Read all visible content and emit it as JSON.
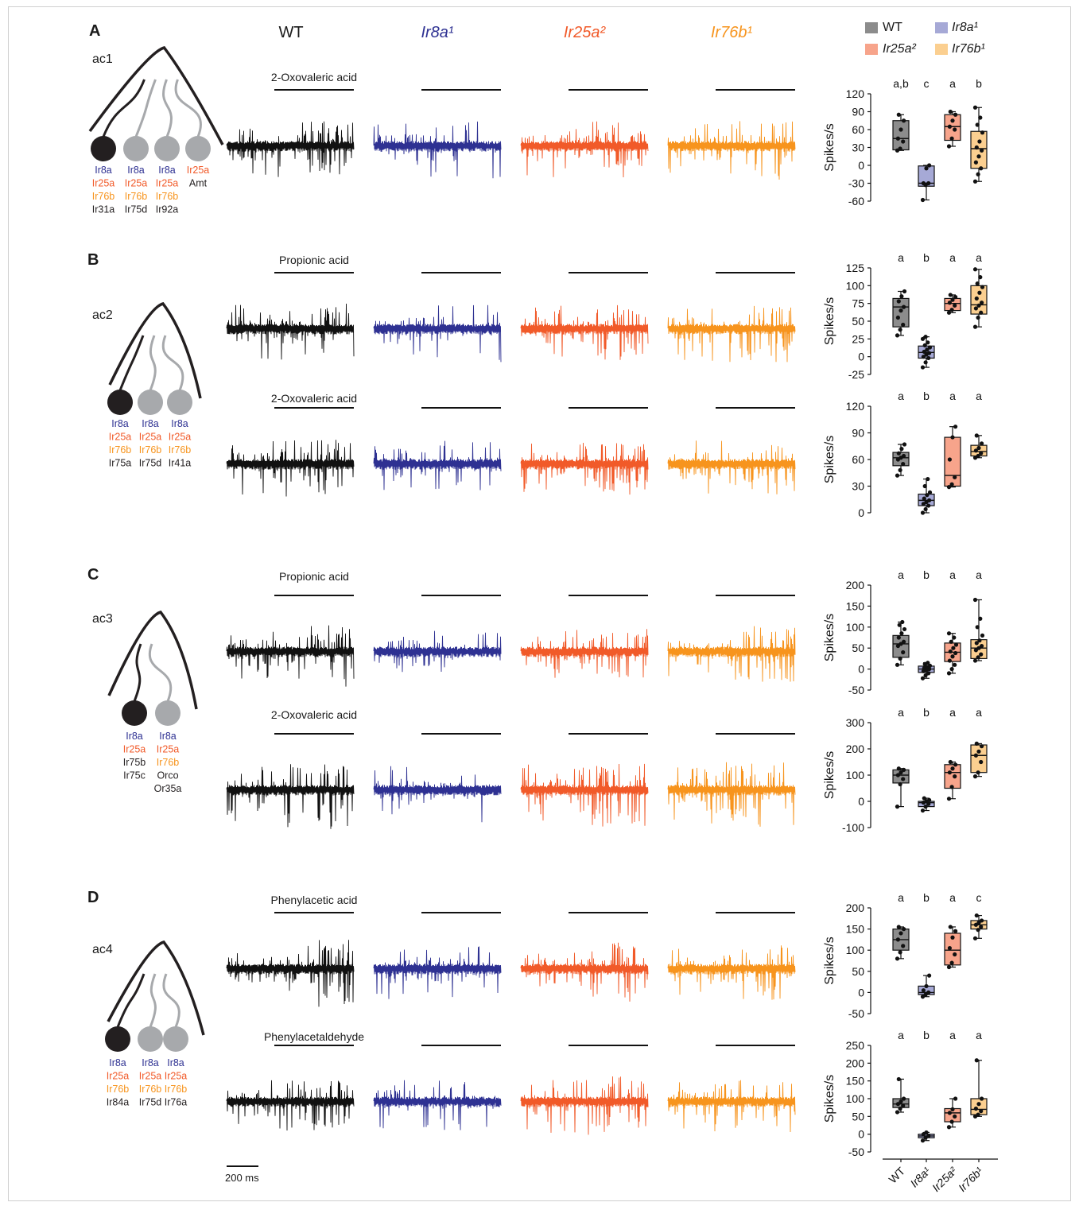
{
  "colors": {
    "wt": "#111111",
    "ir8a": "#2e3192",
    "ir25a": "#f15a29",
    "ir76b": "#f7941d",
    "wt_fill": "#8c8c8c",
    "ir8a_fill": "#a6a9d6",
    "ir25a_fill": "#f7a48b",
    "ir76b_fill": "#fbcf90",
    "grey_neuron": "#a7a9ac"
  },
  "genotypes": [
    "WT",
    "Ir8a¹",
    "Ir25a²",
    "Ir76b¹"
  ],
  "legend": {
    "wt": "WT",
    "ir8a": "Ir8a¹",
    "ir25a": "Ir25a²",
    "ir76b": "Ir76b¹"
  },
  "x_tick_labels": [
    "WT",
    "Ir8a¹",
    "Ir25a²",
    "Ir76b¹"
  ],
  "scale_bar": "200 ms",
  "panels": [
    {
      "letter": "A",
      "sensillum": "ac1",
      "neurons": [
        {
          "filled": true,
          "receptors": [
            [
              "Ir8a",
              "ir8a"
            ],
            [
              "Ir25a",
              "ir25a"
            ],
            [
              "Ir76b",
              "ir76b"
            ],
            [
              "Ir31a",
              "wt"
            ]
          ]
        },
        {
          "filled": false,
          "receptors": [
            [
              "Ir8a",
              "ir8a"
            ],
            [
              "Ir25a",
              "ir25a"
            ],
            [
              "Ir76b",
              "ir76b"
            ],
            [
              "Ir75d",
              "wt"
            ]
          ]
        },
        {
          "filled": false,
          "receptors": [
            [
              "Ir8a",
              "ir8a"
            ],
            [
              "Ir25a",
              "ir25a"
            ],
            [
              "Ir76b",
              "ir76b"
            ],
            [
              "Ir92a",
              "wt"
            ]
          ]
        },
        {
          "filled": false,
          "receptors": [
            [
              "Ir25a",
              "ir25a"
            ],
            [
              "Amt",
              "wt"
            ]
          ]
        }
      ]
    },
    {
      "letter": "B",
      "sensillum": "ac2",
      "neurons": [
        {
          "filled": true,
          "receptors": [
            [
              "Ir8a",
              "ir8a"
            ],
            [
              "Ir25a",
              "ir25a"
            ],
            [
              "Ir76b",
              "ir76b"
            ],
            [
              "Ir75a",
              "wt"
            ]
          ]
        },
        {
          "filled": false,
          "receptors": [
            [
              "Ir8a",
              "ir8a"
            ],
            [
              "Ir25a",
              "ir25a"
            ],
            [
              "Ir76b",
              "ir76b"
            ],
            [
              "Ir75d",
              "wt"
            ]
          ]
        },
        {
          "filled": false,
          "receptors": [
            [
              "Ir8a",
              "ir8a"
            ],
            [
              "Ir25a",
              "ir25a"
            ],
            [
              "Ir76b",
              "ir76b"
            ],
            [
              "Ir41a",
              "wt"
            ]
          ]
        }
      ]
    },
    {
      "letter": "C",
      "sensillum": "ac3",
      "neurons": [
        {
          "filled": true,
          "receptors": [
            [
              "Ir8a",
              "ir8a"
            ],
            [
              "Ir25a",
              "ir25a"
            ],
            [
              "Ir75b",
              "wt"
            ],
            [
              "Ir75c",
              "wt"
            ]
          ]
        },
        {
          "filled": false,
          "receptors": [
            [
              "Ir8a",
              "ir8a"
            ],
            [
              "Ir25a",
              "ir25a"
            ],
            [
              "Ir76b",
              "ir76b"
            ],
            [
              "Orco",
              "wt"
            ],
            [
              "Or35a",
              "wt"
            ]
          ]
        }
      ]
    },
    {
      "letter": "D",
      "sensillum": "ac4",
      "neurons": [
        {
          "filled": true,
          "receptors": [
            [
              "Ir8a",
              "ir8a"
            ],
            [
              "Ir25a",
              "ir25a"
            ],
            [
              "Ir76b",
              "ir76b"
            ],
            [
              "Ir84a",
              "wt"
            ]
          ]
        },
        {
          "filled": false,
          "receptors": [
            [
              "Ir8a",
              "ir8a"
            ],
            [
              "Ir25a",
              "ir25a"
            ],
            [
              "Ir76b",
              "ir76b"
            ],
            [
              "Ir75d",
              "wt"
            ]
          ]
        },
        {
          "filled": false,
          "receptors": [
            [
              "Ir8a",
              "ir8a"
            ],
            [
              "Ir25a",
              "ir25a"
            ],
            [
              "Ir76b",
              "ir76b"
            ],
            [
              "Ir76a",
              "wt"
            ]
          ]
        }
      ]
    }
  ],
  "stimuli": [
    "2-Oxovaleric acid",
    "Propionic acid",
    "2-Oxovaleric acid",
    "Propionic acid",
    "2-Oxovaleric acid",
    "Phenylacetic acid",
    "Phenylacetaldehyde"
  ],
  "chart_data": [
    {
      "type": "box",
      "panel": "A",
      "stimulus": "2-Oxovaleric acid",
      "ylabel": "Spikes/s",
      "ylim": [
        -60,
        120
      ],
      "yticks": [
        120,
        90,
        60,
        30,
        0,
        -30,
        -60
      ],
      "categories": [
        "WT",
        "Ir8a¹",
        "Ir25a²",
        "Ir76b¹"
      ],
      "letters": [
        "a,b",
        "c",
        "a",
        "b"
      ],
      "boxes": [
        {
          "min": 25,
          "q1": 26,
          "median": 45,
          "q3": 75,
          "max": 85,
          "points": [
            25,
            28,
            40,
            45,
            60,
            75,
            85
          ]
        },
        {
          "min": -58,
          "q1": -35,
          "median": -30,
          "q3": -1,
          "max": 0,
          "points": [
            -58,
            -33,
            -30,
            -30,
            -5,
            0
          ]
        },
        {
          "min": 32,
          "q1": 42,
          "median": 65,
          "q3": 85,
          "max": 90,
          "points": [
            32,
            45,
            60,
            65,
            75,
            85,
            90
          ]
        },
        {
          "min": -27,
          "q1": -5,
          "median": 28,
          "q3": 57,
          "max": 97,
          "points": [
            -27,
            -15,
            -5,
            5,
            15,
            25,
            30,
            40,
            55,
            68,
            80,
            97
          ]
        }
      ]
    },
    {
      "type": "box",
      "panel": "B",
      "stimulus": "Propionic acid",
      "ylabel": "Spikes/s",
      "ylim": [
        -25,
        125
      ],
      "yticks": [
        125,
        100,
        75,
        50,
        25,
        0,
        -25
      ],
      "categories": [
        "WT",
        "Ir8a¹",
        "Ir25a²",
        "Ir76b¹"
      ],
      "letters": [
        "a",
        "b",
        "a",
        "a"
      ],
      "boxes": [
        {
          "min": 30,
          "q1": 42,
          "median": 70,
          "q3": 82,
          "max": 92,
          "points": [
            30,
            38,
            45,
            55,
            65,
            70,
            78,
            85,
            92
          ]
        },
        {
          "min": -15,
          "q1": -2,
          "median": 6,
          "q3": 15,
          "max": 28,
          "points": [
            -15,
            -8,
            -2,
            0,
            3,
            5,
            7,
            10,
            13,
            16,
            20,
            25,
            28
          ]
        },
        {
          "min": 62,
          "q1": 65,
          "median": 75,
          "q3": 82,
          "max": 87,
          "points": [
            62,
            66,
            72,
            76,
            80,
            84,
            87
          ]
        },
        {
          "min": 42,
          "q1": 60,
          "median": 73,
          "q3": 100,
          "max": 123,
          "points": [
            42,
            55,
            62,
            68,
            72,
            76,
            82,
            90,
            98,
            103,
            112,
            123
          ]
        }
      ]
    },
    {
      "type": "box",
      "panel": "B",
      "stimulus": "2-Oxovaleric acid",
      "ylabel": "Spikes/s",
      "ylim": [
        0,
        120
      ],
      "yticks": [
        120,
        90,
        60,
        30,
        0
      ],
      "categories": [
        "WT",
        "Ir8a¹",
        "Ir25a²",
        "Ir76b¹"
      ],
      "letters": [
        "a",
        "b",
        "a",
        "a"
      ],
      "boxes": [
        {
          "min": 42,
          "q1": 53,
          "median": 62,
          "q3": 68,
          "max": 77,
          "points": [
            42,
            48,
            55,
            60,
            62,
            64,
            67,
            72,
            77
          ]
        },
        {
          "min": 0,
          "q1": 8,
          "median": 14,
          "q3": 21,
          "max": 38,
          "points": [
            0,
            4,
            8,
            10,
            12,
            14,
            16,
            20,
            23,
            30,
            38
          ]
        },
        {
          "min": 29,
          "q1": 30,
          "median": 42,
          "q3": 85,
          "max": 97,
          "points": [
            29,
            32,
            40,
            60,
            85,
            97
          ]
        },
        {
          "min": 62,
          "q1": 64,
          "median": 69,
          "q3": 76,
          "max": 87,
          "points": [
            62,
            64,
            67,
            70,
            73,
            78,
            87
          ]
        }
      ]
    },
    {
      "type": "box",
      "panel": "C",
      "stimulus": "Propionic acid",
      "ylabel": "Spikes/s",
      "ylim": [
        -50,
        200
      ],
      "yticks": [
        200,
        150,
        100,
        50,
        0,
        -50
      ],
      "categories": [
        "WT",
        "Ir8a¹",
        "Ir25a²",
        "Ir76b¹"
      ],
      "letters": [
        "a",
        "b",
        "a",
        "a"
      ],
      "boxes": [
        {
          "min": 10,
          "q1": 28,
          "median": 60,
          "q3": 80,
          "max": 112,
          "points": [
            10,
            25,
            40,
            55,
            60,
            65,
            75,
            85,
            95,
            105,
            112
          ]
        },
        {
          "min": -22,
          "q1": -8,
          "median": 0,
          "q3": 7,
          "max": 15,
          "points": [
            -22,
            -15,
            -10,
            -5,
            -2,
            0,
            2,
            5,
            8,
            12,
            15
          ]
        },
        {
          "min": -10,
          "q1": 18,
          "median": 40,
          "q3": 62,
          "max": 85,
          "points": [
            -10,
            0,
            10,
            20,
            30,
            38,
            42,
            50,
            58,
            65,
            75,
            85
          ]
        },
        {
          "min": 20,
          "q1": 25,
          "median": 50,
          "q3": 70,
          "max": 165,
          "points": [
            20,
            28,
            35,
            45,
            50,
            55,
            62,
            68,
            80,
            100,
            120,
            165
          ]
        }
      ]
    },
    {
      "type": "box",
      "panel": "C",
      "stimulus": "2-Oxovaleric acid",
      "ylabel": "Spikes/s",
      "ylim": [
        -100,
        300
      ],
      "yticks": [
        300,
        200,
        100,
        0,
        -100
      ],
      "categories": [
        "WT",
        "Ir8a¹",
        "Ir25a²",
        "Ir76b¹"
      ],
      "letters": [
        "a",
        "b",
        "a",
        "a"
      ],
      "boxes": [
        {
          "min": -20,
          "q1": 70,
          "median": 100,
          "q3": 120,
          "max": 125,
          "points": [
            -20,
            65,
            85,
            100,
            110,
            120,
            125
          ]
        },
        {
          "min": -35,
          "q1": -20,
          "median": -5,
          "q3": 0,
          "max": 12,
          "points": [
            -35,
            -20,
            -10,
            -5,
            0,
            5,
            12
          ]
        },
        {
          "min": 10,
          "q1": 50,
          "median": 110,
          "q3": 140,
          "max": 150,
          "points": [
            10,
            55,
            95,
            110,
            125,
            140,
            150
          ]
        },
        {
          "min": 95,
          "q1": 110,
          "median": 175,
          "q3": 215,
          "max": 220,
          "points": [
            95,
            110,
            150,
            175,
            190,
            210,
            220
          ]
        }
      ]
    },
    {
      "type": "box",
      "panel": "D",
      "stimulus": "Phenylacetic acid",
      "ylabel": "Spikes/s",
      "ylim": [
        -50,
        200
      ],
      "yticks": [
        200,
        150,
        100,
        50,
        0,
        -50
      ],
      "categories": [
        "WT",
        "Ir8a¹",
        "Ir25a²",
        "Ir76b¹"
      ],
      "letters": [
        "a",
        "b",
        "a",
        "c"
      ],
      "boxes": [
        {
          "min": 80,
          "q1": 100,
          "median": 125,
          "q3": 150,
          "max": 155,
          "points": [
            80,
            95,
            110,
            125,
            140,
            150,
            155
          ]
        },
        {
          "min": -10,
          "q1": -5,
          "median": 0,
          "q3": 15,
          "max": 40,
          "points": [
            -10,
            -5,
            0,
            5,
            15,
            40
          ]
        },
        {
          "min": 60,
          "q1": 65,
          "median": 100,
          "q3": 140,
          "max": 155,
          "points": [
            60,
            70,
            90,
            105,
            130,
            145,
            155
          ]
        },
        {
          "min": 128,
          "q1": 150,
          "median": 160,
          "q3": 170,
          "max": 182,
          "points": [
            128,
            148,
            155,
            160,
            165,
            170,
            182
          ]
        }
      ]
    },
    {
      "type": "box",
      "panel": "D",
      "stimulus": "Phenylacetaldehyde",
      "ylabel": "Spikes/s",
      "ylim": [
        -50,
        250
      ],
      "yticks": [
        250,
        200,
        150,
        100,
        50,
        0,
        -50
      ],
      "categories": [
        "WT",
        "Ir8a¹",
        "Ir25a²",
        "Ir76b¹"
      ],
      "letters": [
        "a",
        "b",
        "a",
        "a"
      ],
      "boxes": [
        {
          "min": 62,
          "q1": 75,
          "median": 85,
          "q3": 100,
          "max": 155,
          "points": [
            62,
            72,
            80,
            85,
            92,
            100,
            155
          ]
        },
        {
          "min": -18,
          "q1": -10,
          "median": -5,
          "q3": 0,
          "max": 5,
          "points": [
            -18,
            -10,
            -5,
            0,
            5
          ]
        },
        {
          "min": 20,
          "q1": 35,
          "median": 60,
          "q3": 72,
          "max": 100,
          "points": [
            20,
            35,
            50,
            60,
            70,
            100
          ]
        },
        {
          "min": 50,
          "q1": 55,
          "median": 70,
          "q3": 100,
          "max": 208,
          "points": [
            50,
            55,
            65,
            72,
            85,
            100,
            208
          ]
        }
      ]
    }
  ]
}
